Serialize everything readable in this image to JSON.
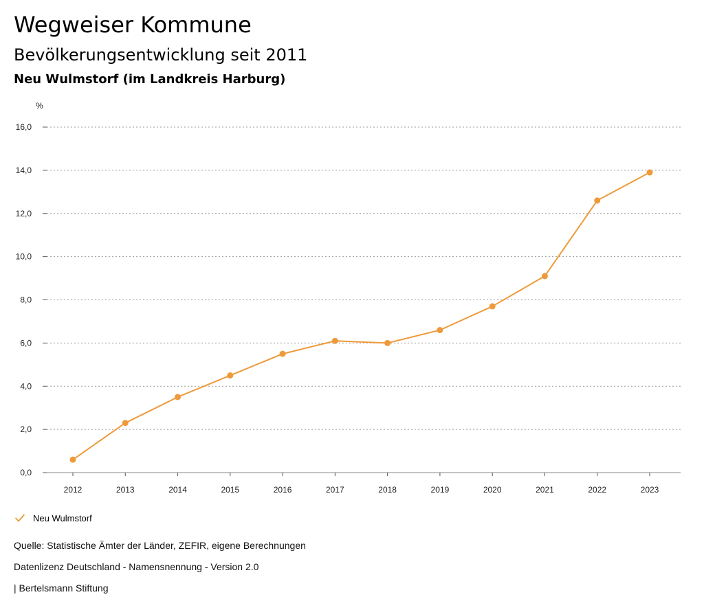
{
  "header": {
    "title": "Wegweiser Kommune",
    "subtitle": "Bevölkerungsentwicklung seit 2011",
    "region": "Neu Wulmstorf (im Landkreis Harburg)"
  },
  "legend": {
    "items": [
      {
        "label": "Neu Wulmstorf",
        "icon": "checkmark-icon"
      }
    ]
  },
  "footer": {
    "source": "Quelle: Statistische Ämter der Länder, ZEFIR, eigene Berechnungen",
    "license": "Datenlizenz Deutschland - Namensnennung - Version 2.0",
    "publisher": "| Bertelsmann Stiftung"
  },
  "chart_data": {
    "type": "line",
    "title": "Bevölkerungsentwicklung seit 2011",
    "xlabel": "",
    "ylabel": "%",
    "categories": [
      "2012",
      "2013",
      "2014",
      "2015",
      "2016",
      "2017",
      "2018",
      "2019",
      "2020",
      "2021",
      "2022",
      "2023"
    ],
    "series": [
      {
        "name": "Neu Wulmstorf",
        "color": "#ee9a3a",
        "values": [
          0.6,
          2.3,
          3.5,
          4.5,
          5.5,
          6.1,
          6.0,
          6.6,
          7.7,
          9.1,
          12.6,
          13.9
        ]
      }
    ],
    "ylim": [
      0,
      16
    ],
    "yticks": [
      "0,0",
      "2,0",
      "4,0",
      "6,0",
      "8,0",
      "10,0",
      "12,0",
      "14,0",
      "16,0"
    ],
    "grid": true,
    "legend_position": "bottom-left"
  }
}
